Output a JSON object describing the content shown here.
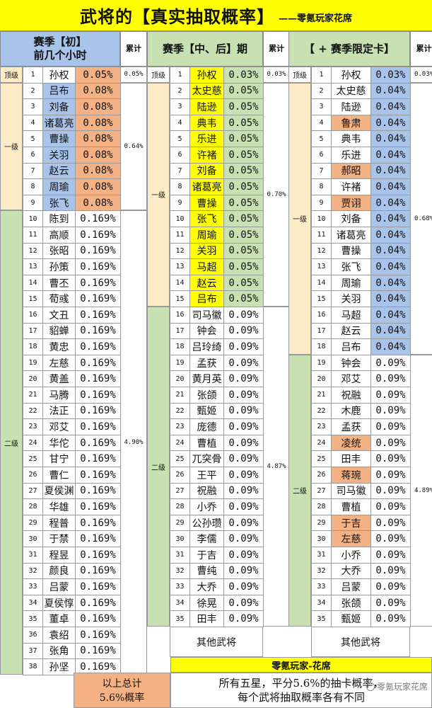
{
  "title": {
    "main": "武将的【真实抽取概率】",
    "sub": "——零氪玩家花席"
  },
  "colors": {
    "blue": "#a9c4ea",
    "orange": "#f4b183",
    "yellow": "#ffff00",
    "green": "#c7e1b2",
    "cream": "#fdebc8",
    "white": "#ffffff"
  },
  "sections": [
    {
      "header": "赛季【初】\n前几个小时",
      "header_color": "blue",
      "sum_header": "累计",
      "tiers": [
        {
          "label": "顶级",
          "start": 0,
          "end": 0,
          "color": "cream",
          "sum": "0.05%"
        },
        {
          "label": "一级",
          "start": 1,
          "end": 8,
          "color": "cream",
          "sum": "0.64%"
        },
        {
          "label": "二级",
          "start": 9,
          "end": 37,
          "color": "green",
          "sum": "4.90%"
        }
      ],
      "rows": [
        {
          "n": "1",
          "name": "孙权",
          "p": "0.05%",
          "nc": "white",
          "pc": "orange"
        },
        {
          "n": "2",
          "name": "吕布",
          "p": "0.08%",
          "nc": "blue",
          "pc": "orange"
        },
        {
          "n": "3",
          "name": "刘备",
          "p": "0.08%",
          "nc": "blue",
          "pc": "orange"
        },
        {
          "n": "4",
          "name": "诸葛亮",
          "p": "0.08%",
          "nc": "blue",
          "pc": "orange"
        },
        {
          "n": "5",
          "name": "曹操",
          "p": "0.08%",
          "nc": "blue",
          "pc": "orange"
        },
        {
          "n": "6",
          "name": "关羽",
          "p": "0.08%",
          "nc": "blue",
          "pc": "orange"
        },
        {
          "n": "7",
          "name": "赵云",
          "p": "0.08%",
          "nc": "blue",
          "pc": "orange"
        },
        {
          "n": "8",
          "name": "周瑜",
          "p": "0.08%",
          "nc": "blue",
          "pc": "orange"
        },
        {
          "n": "9",
          "name": "张飞",
          "p": "0.08%",
          "nc": "blue",
          "pc": "orange"
        },
        {
          "n": "10",
          "name": "陈到",
          "p": "0.169%",
          "nc": "white",
          "pc": "white"
        },
        {
          "n": "11",
          "name": "高顺",
          "p": "0.169%",
          "nc": "white",
          "pc": "white"
        },
        {
          "n": "12",
          "name": "张昭",
          "p": "0.169%",
          "nc": "white",
          "pc": "white"
        },
        {
          "n": "13",
          "name": "孙策",
          "p": "0.169%",
          "nc": "white",
          "pc": "white"
        },
        {
          "n": "14",
          "name": "曹丕",
          "p": "0.169%",
          "nc": "white",
          "pc": "white"
        },
        {
          "n": "15",
          "name": "荀彧",
          "p": "0.169%",
          "nc": "white",
          "pc": "white"
        },
        {
          "n": "16",
          "name": "文丑",
          "p": "0.169%",
          "nc": "white",
          "pc": "white"
        },
        {
          "n": "17",
          "name": "貂蝉",
          "p": "0.169%",
          "nc": "white",
          "pc": "white"
        },
        {
          "n": "18",
          "name": "黄忠",
          "p": "0.169%",
          "nc": "white",
          "pc": "white"
        },
        {
          "n": "19",
          "name": "左慈",
          "p": "0.169%",
          "nc": "white",
          "pc": "white"
        },
        {
          "n": "20",
          "name": "黄盖",
          "p": "0.169%",
          "nc": "white",
          "pc": "white"
        },
        {
          "n": "21",
          "name": "马腾",
          "p": "0.169%",
          "nc": "white",
          "pc": "white"
        },
        {
          "n": "22",
          "name": "法正",
          "p": "0.169%",
          "nc": "white",
          "pc": "white"
        },
        {
          "n": "23",
          "name": "邓艾",
          "p": "0.169%",
          "nc": "white",
          "pc": "white"
        },
        {
          "n": "24",
          "name": "华佗",
          "p": "0.169%",
          "nc": "white",
          "pc": "white"
        },
        {
          "n": "25",
          "name": "甘宁",
          "p": "0.169%",
          "nc": "white",
          "pc": "white"
        },
        {
          "n": "26",
          "name": "曹仁",
          "p": "0.169%",
          "nc": "white",
          "pc": "white"
        },
        {
          "n": "27",
          "name": "夏侯渊",
          "p": "0.169%",
          "nc": "white",
          "pc": "white"
        },
        {
          "n": "28",
          "name": "华雄",
          "p": "0.169%",
          "nc": "white",
          "pc": "white"
        },
        {
          "n": "29",
          "name": "程普",
          "p": "0.169%",
          "nc": "white",
          "pc": "white"
        },
        {
          "n": "30",
          "name": "于禁",
          "p": "0.169%",
          "nc": "white",
          "pc": "white"
        },
        {
          "n": "31",
          "name": "程昱",
          "p": "0.169%",
          "nc": "white",
          "pc": "white"
        },
        {
          "n": "32",
          "name": "颜良",
          "p": "0.169%",
          "nc": "white",
          "pc": "white"
        },
        {
          "n": "33",
          "name": "吕蒙",
          "p": "0.169%",
          "nc": "white",
          "pc": "white"
        },
        {
          "n": "34",
          "name": "夏侯惇",
          "p": "0.169%",
          "nc": "white",
          "pc": "white"
        },
        {
          "n": "35",
          "name": "董卓",
          "p": "0.169%",
          "nc": "white",
          "pc": "white"
        },
        {
          "n": "36",
          "name": "袁绍",
          "p": "0.169%",
          "nc": "white",
          "pc": "white"
        },
        {
          "n": "37",
          "name": "张角",
          "p": "0.169%",
          "nc": "white",
          "pc": "white"
        },
        {
          "n": "38",
          "name": "孙坚",
          "p": "0.169%",
          "nc": "white",
          "pc": "white"
        }
      ]
    },
    {
      "header": "赛季【中、后】期",
      "header_color": "green",
      "sum_header": "累计",
      "tiers": [
        {
          "label": "顶级",
          "start": 0,
          "end": 0,
          "color": "white",
          "sum": "0.03%"
        },
        {
          "label": "一级",
          "start": 1,
          "end": 14,
          "color": "cream",
          "sum": "0.70%"
        },
        {
          "label": "二级",
          "start": 15,
          "end": 34,
          "color": "green",
          "sum": "4.87%"
        }
      ],
      "other_label": "其他武将",
      "rows": [
        {
          "n": "1",
          "name": "孙权",
          "p": "0.03%",
          "nc": "yellow",
          "pc": "green"
        },
        {
          "n": "2",
          "name": "太史慈",
          "p": "0.05%",
          "nc": "yellow",
          "pc": "green"
        },
        {
          "n": "3",
          "name": "陆逊",
          "p": "0.05%",
          "nc": "yellow",
          "pc": "green"
        },
        {
          "n": "4",
          "name": "典韦",
          "p": "0.05%",
          "nc": "yellow",
          "pc": "green"
        },
        {
          "n": "5",
          "name": "乐进",
          "p": "0.05%",
          "nc": "yellow",
          "pc": "green"
        },
        {
          "n": "6",
          "name": "许褚",
          "p": "0.05%",
          "nc": "yellow",
          "pc": "green"
        },
        {
          "n": "7",
          "name": "刘备",
          "p": "0.05%",
          "nc": "yellow",
          "pc": "green"
        },
        {
          "n": "8",
          "name": "诸葛亮",
          "p": "0.05%",
          "nc": "yellow",
          "pc": "green"
        },
        {
          "n": "9",
          "name": "曹操",
          "p": "0.05%",
          "nc": "yellow",
          "pc": "green"
        },
        {
          "n": "10",
          "name": "张飞",
          "p": "0.05%",
          "nc": "yellow",
          "pc": "green"
        },
        {
          "n": "11",
          "name": "周瑜",
          "p": "0.05%",
          "nc": "yellow",
          "pc": "green"
        },
        {
          "n": "12",
          "name": "关羽",
          "p": "0.05%",
          "nc": "yellow",
          "pc": "green"
        },
        {
          "n": "13",
          "name": "马超",
          "p": "0.05%",
          "nc": "yellow",
          "pc": "green"
        },
        {
          "n": "14",
          "name": "赵云",
          "p": "0.05%",
          "nc": "yellow",
          "pc": "green"
        },
        {
          "n": "15",
          "name": "吕布",
          "p": "0.05%",
          "nc": "yellow",
          "pc": "green"
        },
        {
          "n": "16",
          "name": "司马徽",
          "p": "0.09%",
          "nc": "white",
          "pc": "white"
        },
        {
          "n": "17",
          "name": "钟会",
          "p": "0.09%",
          "nc": "white",
          "pc": "white"
        },
        {
          "n": "18",
          "name": "吕玲绮",
          "p": "0.09%",
          "nc": "white",
          "pc": "white"
        },
        {
          "n": "19",
          "name": "孟获",
          "p": "0.09%",
          "nc": "white",
          "pc": "white"
        },
        {
          "n": "20",
          "name": "黄月英",
          "p": "0.09%",
          "nc": "white",
          "pc": "white"
        },
        {
          "n": "21",
          "name": "张颌",
          "p": "0.09%",
          "nc": "white",
          "pc": "white"
        },
        {
          "n": "22",
          "name": "甄姬",
          "p": "0.09%",
          "nc": "white",
          "pc": "white"
        },
        {
          "n": "23",
          "name": "庞德",
          "p": "0.09%",
          "nc": "white",
          "pc": "white"
        },
        {
          "n": "24",
          "name": "曹植",
          "p": "0.09%",
          "nc": "white",
          "pc": "white"
        },
        {
          "n": "25",
          "name": "兀突骨",
          "p": "0.09%",
          "nc": "white",
          "pc": "white"
        },
        {
          "n": "26",
          "name": "王平",
          "p": "0.09%",
          "nc": "white",
          "pc": "white"
        },
        {
          "n": "27",
          "name": "祝融",
          "p": "0.09%",
          "nc": "white",
          "pc": "white"
        },
        {
          "n": "28",
          "name": "小乔",
          "p": "0.09%",
          "nc": "white",
          "pc": "white"
        },
        {
          "n": "29",
          "name": "公孙瓒",
          "p": "0.09%",
          "nc": "white",
          "pc": "white"
        },
        {
          "n": "30",
          "name": "李儒",
          "p": "0.09%",
          "nc": "white",
          "pc": "white"
        },
        {
          "n": "31",
          "name": "于吉",
          "p": "0.09%",
          "nc": "white",
          "pc": "white"
        },
        {
          "n": "32",
          "name": "曹纯",
          "p": "0.09%",
          "nc": "white",
          "pc": "white"
        },
        {
          "n": "33",
          "name": "大乔",
          "p": "0.09%",
          "nc": "white",
          "pc": "white"
        },
        {
          "n": "34",
          "name": "徐晃",
          "p": "0.09%",
          "nc": "white",
          "pc": "white"
        },
        {
          "n": "35",
          "name": "田丰",
          "p": "0.09%",
          "nc": "white",
          "pc": "white"
        }
      ]
    },
    {
      "header": "【 + 赛季限定卡】",
      "header_color": "green",
      "sum_header": "累计",
      "tiers": [
        {
          "label": "顶级",
          "start": 0,
          "end": 0,
          "color": "white",
          "sum": "0.03%"
        },
        {
          "label": "一级",
          "start": 1,
          "end": 17,
          "color": "cream",
          "sum": "0.68%"
        },
        {
          "label": "二级",
          "start": 18,
          "end": 34,
          "color": "green",
          "sum": "4.89%"
        }
      ],
      "other_label": "其他武将",
      "rows": [
        {
          "n": "1",
          "name": "孙权",
          "p": "0.03%",
          "nc": "white",
          "pc": "blue"
        },
        {
          "n": "2",
          "name": "太史慈",
          "p": "0.04%",
          "nc": "white",
          "pc": "blue"
        },
        {
          "n": "3",
          "name": "陆逊",
          "p": "0.04%",
          "nc": "white",
          "pc": "blue"
        },
        {
          "n": "4",
          "name": "鲁肃",
          "p": "0.04%",
          "nc": "orange",
          "pc": "blue"
        },
        {
          "n": "5",
          "name": "典韦",
          "p": "0.04%",
          "nc": "white",
          "pc": "blue"
        },
        {
          "n": "6",
          "name": "乐进",
          "p": "0.04%",
          "nc": "white",
          "pc": "blue"
        },
        {
          "n": "7",
          "name": "郝昭",
          "p": "0.04%",
          "nc": "orange",
          "pc": "blue"
        },
        {
          "n": "8",
          "name": "许褚",
          "p": "0.04%",
          "nc": "white",
          "pc": "blue"
        },
        {
          "n": "9",
          "name": "贾诩",
          "p": "0.04%",
          "nc": "orange",
          "pc": "blue"
        },
        {
          "n": "10",
          "name": "刘备",
          "p": "0.04%",
          "nc": "white",
          "pc": "blue"
        },
        {
          "n": "11",
          "name": "诸葛亮",
          "p": "0.04%",
          "nc": "white",
          "pc": "blue"
        },
        {
          "n": "12",
          "name": "曹操",
          "p": "0.04%",
          "nc": "white",
          "pc": "blue"
        },
        {
          "n": "13",
          "name": "张飞",
          "p": "0.04%",
          "nc": "white",
          "pc": "blue"
        },
        {
          "n": "14",
          "name": "周瑜",
          "p": "0.04%",
          "nc": "white",
          "pc": "blue"
        },
        {
          "n": "15",
          "name": "关羽",
          "p": "0.04%",
          "nc": "white",
          "pc": "blue"
        },
        {
          "n": "16",
          "name": "马超",
          "p": "0.04%",
          "nc": "white",
          "pc": "blue"
        },
        {
          "n": "17",
          "name": "赵云",
          "p": "0.04%",
          "nc": "white",
          "pc": "blue"
        },
        {
          "n": "18",
          "name": "吕布",
          "p": "0.04%",
          "nc": "white",
          "pc": "blue"
        },
        {
          "n": "19",
          "name": "钟会",
          "p": "0.09%",
          "nc": "white",
          "pc": "white"
        },
        {
          "n": "20",
          "name": "邓艾",
          "p": "0.09%",
          "nc": "white",
          "pc": "white"
        },
        {
          "n": "21",
          "name": "祝融",
          "p": "0.09%",
          "nc": "white",
          "pc": "white"
        },
        {
          "n": "22",
          "name": "木鹿",
          "p": "0.09%",
          "nc": "white",
          "pc": "white"
        },
        {
          "n": "23",
          "name": "孟获",
          "p": "0.09%",
          "nc": "white",
          "pc": "white"
        },
        {
          "n": "24",
          "name": "凌统",
          "p": "0.09%",
          "nc": "orange",
          "pc": "white"
        },
        {
          "n": "25",
          "name": "田丰",
          "p": "0.09%",
          "nc": "white",
          "pc": "white"
        },
        {
          "n": "26",
          "name": "蒋琬",
          "p": "0.09%",
          "nc": "orange",
          "pc": "white"
        },
        {
          "n": "27",
          "name": "司马徽",
          "p": "0.09%",
          "nc": "white",
          "pc": "white"
        },
        {
          "n": "28",
          "name": "曹植",
          "p": "0.09%",
          "nc": "white",
          "pc": "white"
        },
        {
          "n": "29",
          "name": "于吉",
          "p": "0.09%",
          "nc": "orange",
          "pc": "white"
        },
        {
          "n": "30",
          "name": "左慈",
          "p": "0.09%",
          "nc": "orange",
          "pc": "white"
        },
        {
          "n": "31",
          "name": "小乔",
          "p": "0.09%",
          "nc": "white",
          "pc": "white"
        },
        {
          "n": "32",
          "name": "大乔",
          "p": "0.09%",
          "nc": "white",
          "pc": "white"
        },
        {
          "n": "33",
          "name": "吕蒙",
          "p": "0.09%",
          "nc": "white",
          "pc": "white"
        },
        {
          "n": "34",
          "name": "张颌",
          "p": "0.09%",
          "nc": "white",
          "pc": "white"
        },
        {
          "n": "35",
          "name": "甄姬",
          "p": "0.09%",
          "nc": "white",
          "pc": "white"
        }
      ]
    }
  ],
  "footer": {
    "credit": "零氪玩家-花席",
    "total_line1": "以上总计",
    "total_line2": "5.6%概率",
    "note_line1": "所有五星，平分5.6%的抽卡概率，",
    "note_line2": "每个武将抽取概率各有不同",
    "watermark": "零氪玩家花席"
  }
}
